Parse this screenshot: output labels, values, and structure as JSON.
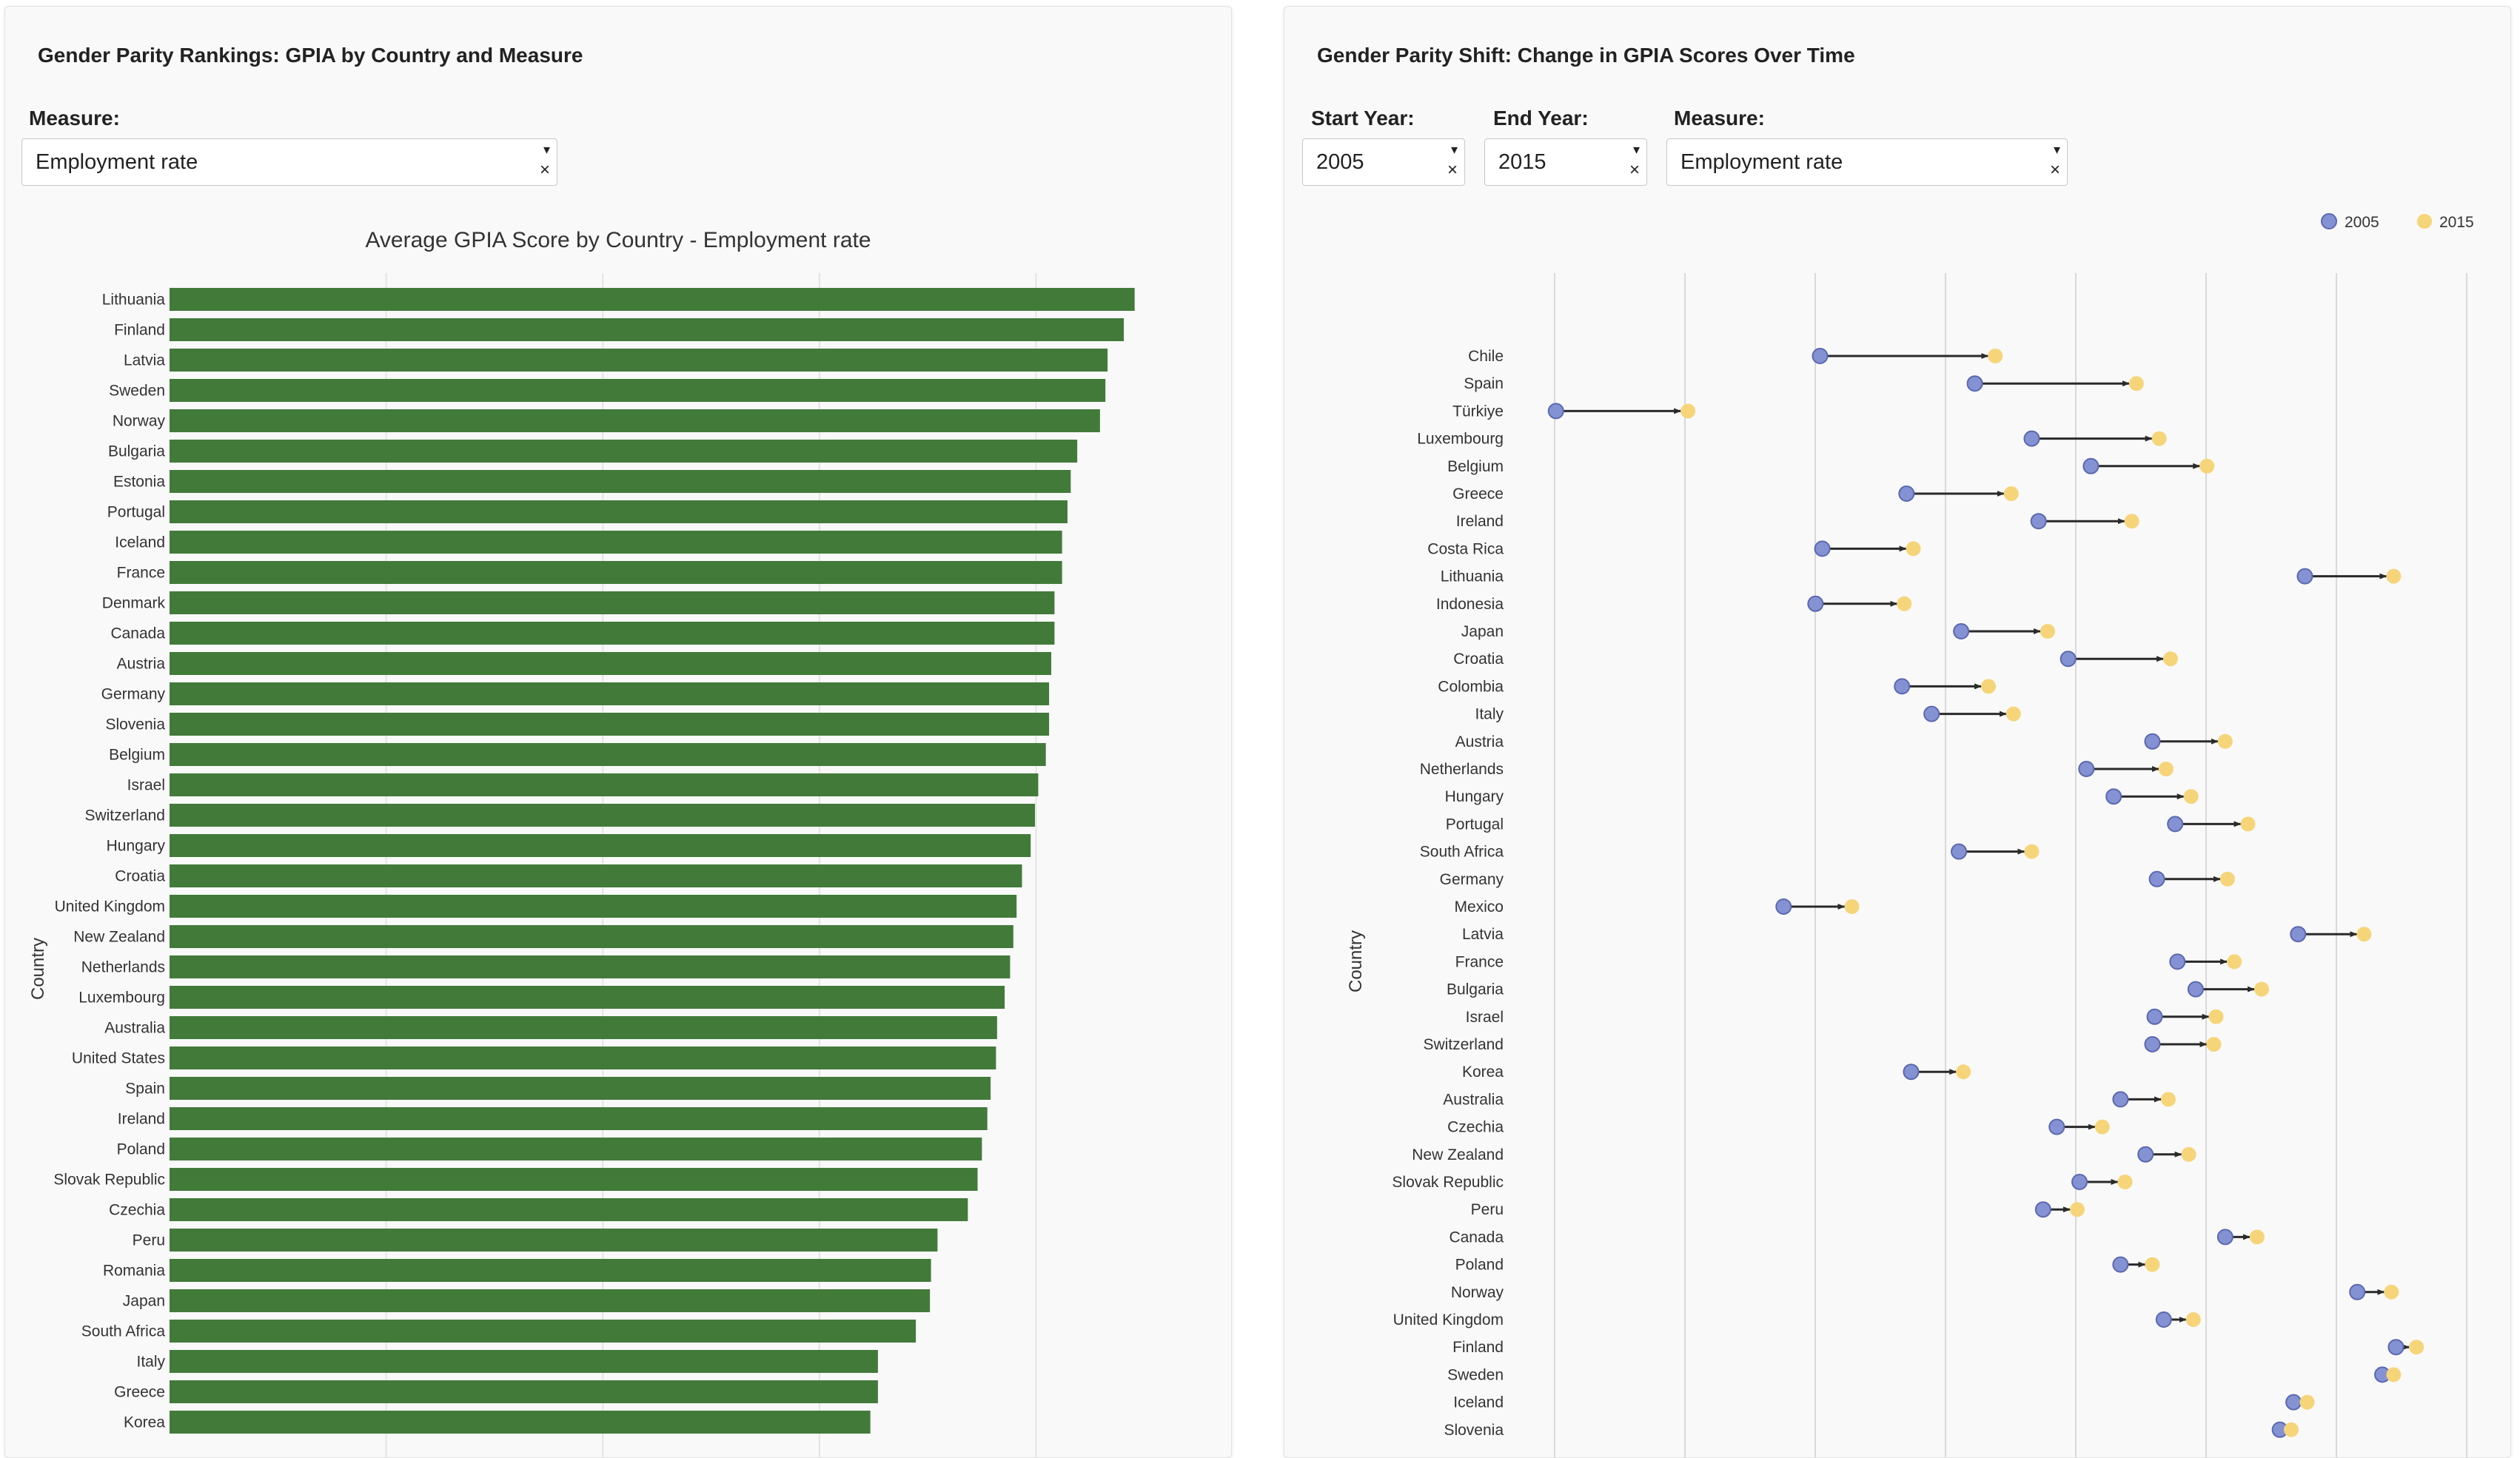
{
  "left_panel": {
    "title": "Gender Parity Rankings: GPIA by Country and Measure",
    "measure_label": "Measure:",
    "measure_value": "Employment rate"
  },
  "right_panel": {
    "title": "Gender Parity Shift: Change in GPIA Scores Over Time",
    "start_year_label": "Start Year:",
    "start_year_value": "2005",
    "end_year_label": "End Year:",
    "end_year_value": "2015",
    "measure_label": "Measure:",
    "measure_value": "Employment rate"
  },
  "icons": {
    "caret": "▾",
    "clear": "×"
  },
  "colors": {
    "bar": "#427a3a",
    "start_point": "#8492d4",
    "end_point": "#f6d57a",
    "arrow": "#2a2a2a",
    "grid": "#d9d9d9"
  },
  "chart_data": [
    {
      "type": "bar",
      "orientation": "horizontal",
      "title": "Average GPIA Score by Country - Employment rate",
      "xlabel": "",
      "ylabel": "Country",
      "xlim": [
        0,
        0.95
      ],
      "grid": true,
      "categories": [
        "Lithuania",
        "Finland",
        "Latvia",
        "Sweden",
        "Norway",
        "Bulgaria",
        "Estonia",
        "Portugal",
        "Iceland",
        "France",
        "Denmark",
        "Canada",
        "Austria",
        "Germany",
        "Slovenia",
        "Belgium",
        "Israel",
        "Switzerland",
        "Hungary",
        "Croatia",
        "United Kingdom",
        "New Zealand",
        "Netherlands",
        "Luxembourg",
        "Australia",
        "United States",
        "Spain",
        "Ireland",
        "Poland",
        "Slovak Republic",
        "Czechia",
        "Peru",
        "Romania",
        "Japan",
        "South Africa",
        "Italy",
        "Greece",
        "Korea"
      ],
      "values": [
        0.891,
        0.881,
        0.866,
        0.864,
        0.859,
        0.838,
        0.832,
        0.829,
        0.824,
        0.824,
        0.817,
        0.817,
        0.814,
        0.812,
        0.812,
        0.809,
        0.802,
        0.799,
        0.795,
        0.787,
        0.782,
        0.779,
        0.776,
        0.771,
        0.764,
        0.763,
        0.758,
        0.755,
        0.75,
        0.746,
        0.737,
        0.709,
        0.703,
        0.702,
        0.689,
        0.654,
        0.654,
        0.647
      ]
    },
    {
      "type": "scatter",
      "subtype": "dumbbell-arrow",
      "title": "",
      "xlabel": "",
      "ylabel": "Country",
      "xlim": [
        0.45,
        1.05
      ],
      "grid": true,
      "legend": {
        "position": "top-right",
        "entries": [
          "2005",
          "2015"
        ]
      },
      "series": [
        {
          "name": "2005",
          "values": [
            0.663,
            0.731,
            0.547,
            0.756,
            0.782,
            0.701,
            0.759,
            0.664,
            0.876,
            0.661,
            0.725,
            0.772,
            0.699,
            0.712,
            0.809,
            0.78,
            0.792,
            0.819,
            0.724,
            0.811,
            0.647,
            0.873,
            0.82,
            0.828,
            0.81,
            0.809,
            0.703,
            0.795,
            0.767,
            0.806,
            0.777,
            0.761,
            0.841,
            0.795,
            0.899,
            0.814,
            0.916,
            0.91,
            0.871,
            0.865
          ]
        },
        {
          "name": "2015",
          "values": [
            0.74,
            0.802,
            0.605,
            0.812,
            0.833,
            0.747,
            0.8,
            0.704,
            0.915,
            0.7,
            0.763,
            0.817,
            0.737,
            0.748,
            0.841,
            0.815,
            0.826,
            0.851,
            0.756,
            0.842,
            0.677,
            0.902,
            0.845,
            0.857,
            0.837,
            0.836,
            0.726,
            0.816,
            0.787,
            0.825,
            0.797,
            0.776,
            0.855,
            0.809,
            0.914,
            0.827,
            0.925,
            0.915,
            0.877,
            0.87
          ]
        }
      ],
      "categories": [
        "Chile",
        "Spain",
        "Türkiye",
        "Luxembourg",
        "Belgium",
        "Greece",
        "Ireland",
        "Costa Rica",
        "Lithuania",
        "Indonesia",
        "Japan",
        "Croatia",
        "Colombia",
        "Italy",
        "Austria",
        "Netherlands",
        "Hungary",
        "Portugal",
        "South Africa",
        "Germany",
        "Mexico",
        "Latvia",
        "France",
        "Bulgaria",
        "Israel",
        "Switzerland",
        "Korea",
        "Australia",
        "Czechia",
        "New Zealand",
        "Slovak Republic",
        "Peru",
        "Canada",
        "Poland",
        "Norway",
        "United Kingdom",
        "Finland",
        "Sweden",
        "Iceland",
        "Slovenia"
      ]
    }
  ]
}
